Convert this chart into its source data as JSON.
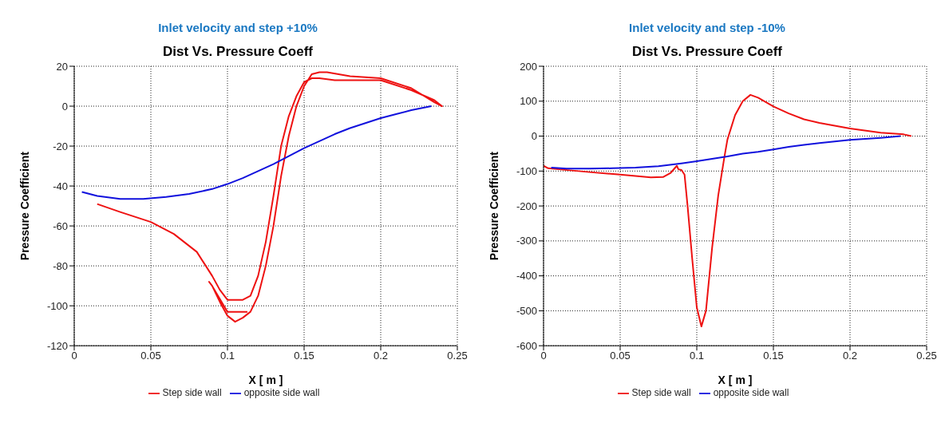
{
  "chart_data": [
    {
      "type": "line",
      "title": "Inlet velocity and step +10%",
      "subtitle": "Dist Vs. Pressure Coeff",
      "xlabel": "X [ m ]",
      "ylabel": "Pressure Coefficient",
      "xlim": [
        0,
        0.25
      ],
      "xticks": [
        0,
        0.05,
        0.1,
        0.15,
        0.2,
        0.25
      ],
      "ylim": [
        -120,
        20
      ],
      "yticks": [
        -120,
        -100,
        -80,
        -60,
        -40,
        -20,
        0,
        20
      ],
      "grid": true,
      "legend": "bottom",
      "marker": "none",
      "line_style": "solid",
      "series": [
        {
          "name": "Step side wall",
          "color": "#ee1111",
          "x": [
            0.015,
            0.03,
            0.05,
            0.065,
            0.08,
            0.09,
            0.095,
            0.1,
            0.11,
            0.115,
            0.12,
            0.125,
            0.13,
            0.135,
            0.14,
            0.145,
            0.15,
            0.155,
            0.16,
            0.17,
            0.2,
            0.22,
            0.235,
            0.24,
            0.235,
            0.22,
            0.2,
            0.18,
            0.165,
            0.16,
            0.155,
            0.15,
            0.145,
            0.14,
            0.135,
            0.13,
            0.125,
            0.12,
            0.115,
            0.11,
            0.105,
            0.1,
            0.095,
            0.09,
            0.088,
            0.09,
            0.1,
            0.113
          ],
          "values": [
            -49,
            -53,
            -58,
            -64,
            -73,
            -85,
            -92,
            -97,
            -97,
            -95,
            -85,
            -68,
            -45,
            -20,
            -5,
            5,
            12,
            14,
            14,
            13,
            13,
            8,
            3,
            0,
            2,
            9,
            14,
            15,
            17,
            17,
            16,
            10,
            0,
            -15,
            -35,
            -60,
            -80,
            -95,
            -103,
            -106,
            -108,
            -105,
            -98,
            -90,
            -88,
            -90,
            -103,
            -103
          ]
        },
        {
          "name": "opposite side wall",
          "color": "#1111dd",
          "x": [
            0.005,
            0.015,
            0.03,
            0.045,
            0.06,
            0.075,
            0.09,
            0.1,
            0.11,
            0.12,
            0.13,
            0.14,
            0.15,
            0.16,
            0.17,
            0.18,
            0.19,
            0.2,
            0.21,
            0.22,
            0.233
          ],
          "values": [
            -43,
            -45,
            -46.5,
            -46.5,
            -45.5,
            -44,
            -41.5,
            -39,
            -36,
            -32.5,
            -29,
            -25,
            -21,
            -17.5,
            -14,
            -11,
            -8.5,
            -6,
            -4,
            -2,
            0
          ]
        }
      ]
    },
    {
      "type": "line",
      "title": "Inlet velocity and step -10%",
      "subtitle": "Dist Vs. Pressure Coeff",
      "xlabel": "X [ m ]",
      "ylabel": "Pressure Coefficient",
      "xlim": [
        0,
        0.25
      ],
      "xticks": [
        0,
        0.05,
        0.1,
        0.15,
        0.2,
        0.25
      ],
      "ylim": [
        -600,
        200
      ],
      "yticks": [
        -600,
        -500,
        -400,
        -300,
        -200,
        -100,
        0,
        100,
        200
      ],
      "grid": true,
      "legend": "bottom",
      "marker": "none",
      "line_style": "solid",
      "series": [
        {
          "name": "Step side wall",
          "color": "#ee1111",
          "x": [
            0,
            0.003,
            0.01,
            0.03,
            0.05,
            0.07,
            0.078,
            0.083,
            0.087,
            0.088,
            0.09,
            0.092,
            0.094,
            0.097,
            0.1,
            0.103,
            0.106,
            0.11,
            0.114,
            0.118,
            0.12,
            0.125,
            0.13,
            0.135,
            0.14,
            0.15,
            0.16,
            0.17,
            0.18,
            0.2,
            0.22,
            0.235,
            0.24
          ],
          "values": [
            -85,
            -92,
            -95,
            -103,
            -110,
            -118,
            -117,
            -105,
            -85,
            -95,
            -97,
            -110,
            -200,
            -350,
            -490,
            -545,
            -500,
            -320,
            -170,
            -60,
            -10,
            60,
            100,
            118,
            110,
            85,
            65,
            48,
            38,
            22,
            10,
            5,
            0
          ]
        },
        {
          "name": "opposite side wall",
          "color": "#1111dd",
          "x": [
            0.005,
            0.015,
            0.03,
            0.045,
            0.06,
            0.075,
            0.09,
            0.1,
            0.11,
            0.12,
            0.13,
            0.14,
            0.15,
            0.16,
            0.17,
            0.18,
            0.2,
            0.22,
            0.233
          ],
          "values": [
            -90,
            -93,
            -93,
            -92,
            -90,
            -86,
            -78,
            -72,
            -65,
            -58,
            -50,
            -45,
            -38,
            -31,
            -25,
            -20,
            -11,
            -5,
            0
          ]
        }
      ]
    }
  ]
}
